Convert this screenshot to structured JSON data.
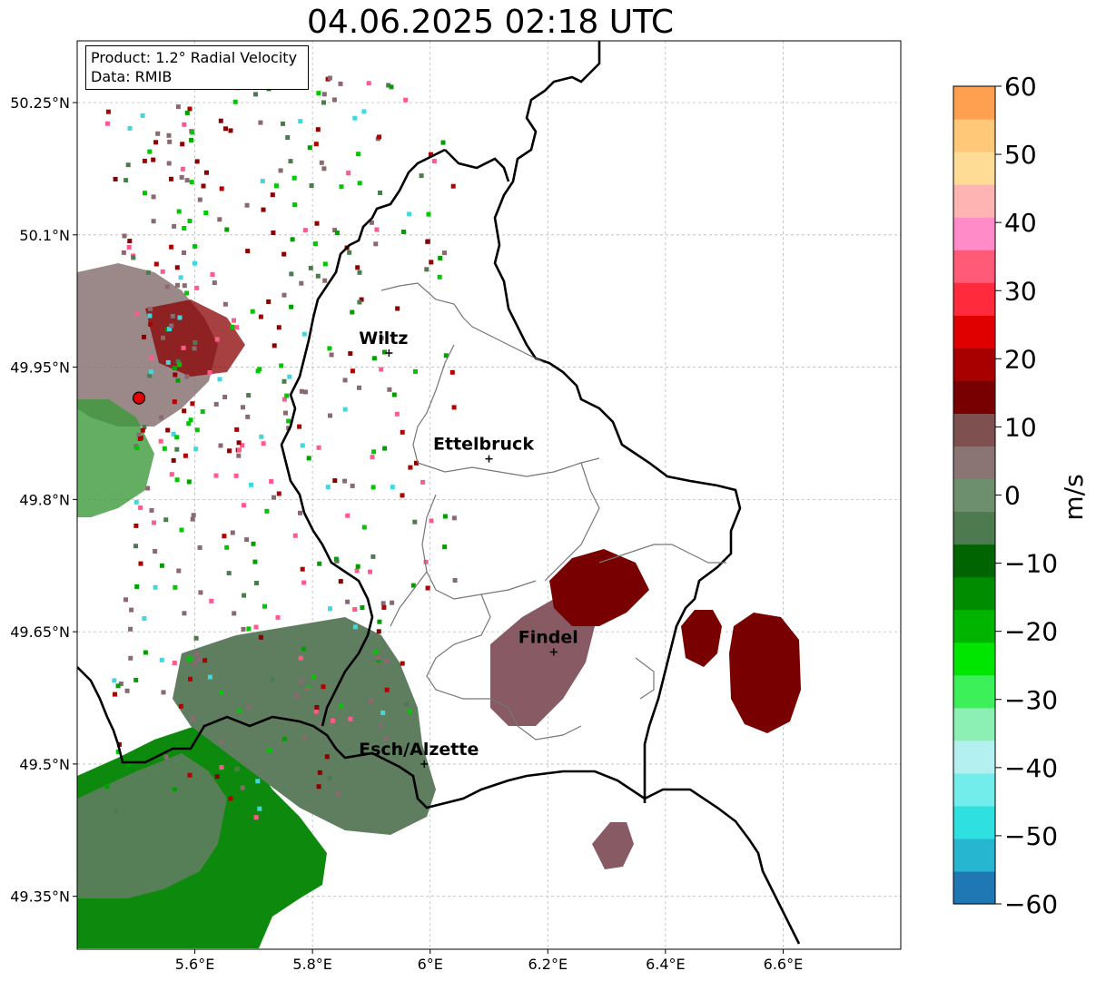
{
  "title": "04.06.2025 02:18 UTC",
  "info": {
    "product": "Product: 1.2° Radial Velocity",
    "source": "Data: RMIB"
  },
  "map": {
    "lon_range": [
      5.4,
      6.8
    ],
    "lat_range": [
      49.29,
      50.32
    ],
    "x_ticks": [
      "5.6°E",
      "5.8°E",
      "6°E",
      "6.2°E",
      "6.4°E",
      "6.6°E"
    ],
    "y_ticks": [
      "50.25°N",
      "50.1°N",
      "49.95°N",
      "49.8°N",
      "49.65°N",
      "49.5°N",
      "49.35°N"
    ],
    "grid": true,
    "cities": [
      {
        "name": "Wiltz",
        "lon": 5.93,
        "lat": 49.966
      },
      {
        "name": "Ettelbruck",
        "lon": 6.1,
        "lat": 49.846
      },
      {
        "name": "Findel",
        "lon": 6.21,
        "lat": 49.627
      },
      {
        "name": "Esch/Alzette",
        "lon": 5.99,
        "lat": 49.5
      }
    ],
    "radar_site": {
      "lon": 5.505,
      "lat": 49.915
    }
  },
  "colorbar": {
    "label": "m/s",
    "min": -60,
    "max": 60,
    "ticks": [
      "60",
      "50",
      "40",
      "30",
      "20",
      "10",
      "0",
      "−10",
      "−20",
      "−30",
      "−40",
      "−50",
      "−60"
    ],
    "colors": [
      "#1f78b4",
      "#26b6d0",
      "#2fe0e0",
      "#73ecec",
      "#b4f0f0",
      "#8cf0b4",
      "#3cf05a",
      "#00e600",
      "#00b400",
      "#008c00",
      "#006400",
      "#4e7a50",
      "#6e8f6e",
      "#8a7474",
      "#7e5050",
      "#780000",
      "#a80000",
      "#e00000",
      "#ff2a3c",
      "#ff5a78",
      "#ff8cc8",
      "#ffb4b4",
      "#ffdc96",
      "#ffc878",
      "#ffa050"
    ]
  }
}
